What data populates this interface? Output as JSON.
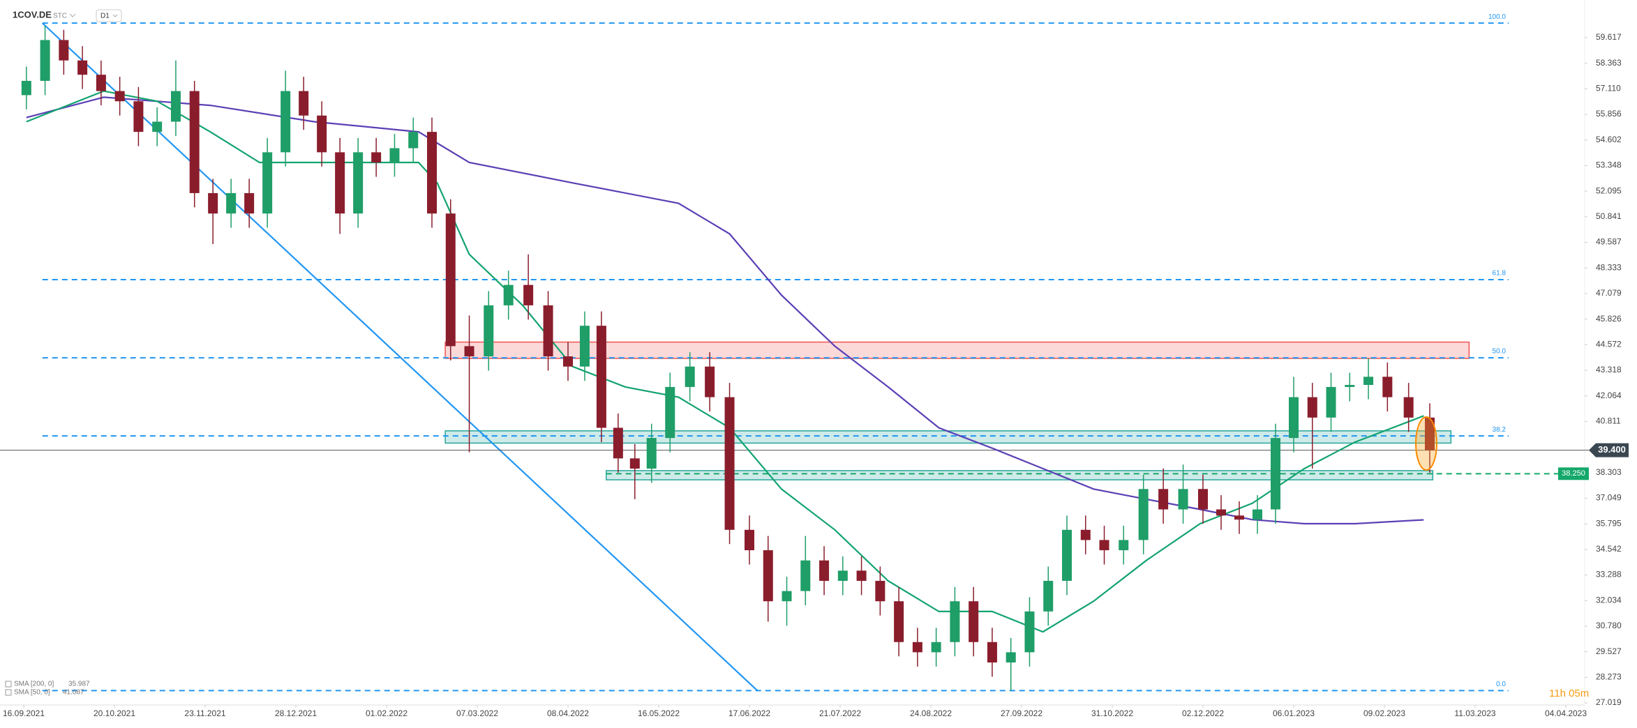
{
  "chart_data": {
    "type": "candlestick",
    "title": "1COV.DE",
    "market": "STC",
    "timeframe": "D1",
    "countdown": "11h 05m",
    "up_color": "#1f9e68",
    "down_color": "#8a1d2c",
    "ylim": [
      27.019,
      59.617
    ],
    "yticks": [
      59.617,
      58.363,
      {
        "value": 57.11,
        "label": "57.110"
      },
      55.856,
      54.602,
      53.348,
      52.095,
      50.841,
      49.587,
      48.333,
      47.079,
      45.826,
      44.572,
      43.318,
      42.064,
      40.811,
      38.303,
      37.049,
      35.795,
      34.542,
      33.288,
      32.034,
      {
        "value": 30.78,
        "label": "30.780"
      },
      29.527,
      28.273,
      27.019
    ],
    "xticks": [
      "16.09.2021",
      "20.10.2021",
      "23.11.2021",
      "28.12.2021",
      "01.02.2022",
      "07.03.2022",
      "08.04.2022",
      "16.05.2022",
      "17.06.2022",
      "21.07.2022",
      "24.08.2022",
      "27.09.2022",
      "31.10.2022",
      "02.12.2022",
      "06.01.2023",
      "09.02.2023",
      "11.03.2023",
      "04.04.2023"
    ],
    "x": [
      "17.09.2021",
      "24.09.2021",
      "01.10.2021",
      "08.10.2021",
      "15.10.2021",
      "22.10.2021",
      "29.10.2021",
      "05.11.2021",
      "12.11.2021",
      "19.11.2021",
      "26.11.2021",
      "03.12.2021",
      "10.12.2021",
      "17.12.2021",
      "24.12.2021",
      "31.12.2021",
      "07.01.2022",
      "14.01.2022",
      "21.01.2022",
      "28.01.2022",
      "04.02.2022",
      "11.02.2022",
      "18.02.2022",
      "25.02.2022",
      "04.03.2022",
      "11.03.2022",
      "18.03.2022",
      "25.03.2022",
      "01.04.2022",
      "08.04.2022",
      "15.04.2022",
      "22.04.2022",
      "29.04.2022",
      "06.05.2022",
      "13.05.2022",
      "20.05.2022",
      "27.05.2022",
      "03.06.2022",
      "10.06.2022",
      "17.06.2022",
      "24.06.2022",
      "01.07.2022",
      "08.07.2022",
      "15.07.2022",
      "22.07.2022",
      "29.07.2022",
      "05.08.2022",
      "12.08.2022",
      "19.08.2022",
      "26.08.2022",
      "02.09.2022",
      "09.09.2022",
      "16.09.2022",
      "23.09.2022",
      "30.09.2022",
      "07.10.2022",
      "14.10.2022",
      "21.10.2022",
      "28.10.2022",
      "04.11.2022",
      "11.11.2022",
      "18.11.2022",
      "25.11.2022",
      "02.12.2022",
      "09.12.2022",
      "16.12.2022",
      "23.12.2022",
      "30.12.2022",
      "06.01.2023",
      "13.01.2023",
      "20.01.2023",
      "27.01.2023",
      "03.02.2023",
      "10.02.2023",
      "17.02.2023",
      "24.02.2023"
    ],
    "open": [
      56.8,
      57.5,
      59.5,
      58.5,
      57.8,
      57,
      56.5,
      55,
      55.5,
      57,
      52,
      51,
      52,
      51,
      54,
      57,
      55.8,
      54,
      51,
      54,
      53.5,
      54.2,
      55,
      51,
      44.5,
      44,
      46.5,
      47.5,
      46.5,
      44,
      43.5,
      45.5,
      40.5,
      39,
      38.5,
      40,
      42.5,
      43.5,
      42,
      35.5,
      34.5,
      32,
      32.5,
      34,
      33,
      33.5,
      33,
      32,
      30,
      29.5,
      30,
      32,
      30,
      29,
      29.5,
      31.5,
      33,
      35.5,
      35,
      34.5,
      35,
      37.5,
      36.5,
      37.5,
      36.5,
      36.2,
      36,
      36.5,
      40,
      42,
      41,
      42.5,
      42.6,
      43,
      42,
      41
    ],
    "high": [
      58.2,
      60.2,
      60.0,
      59.2,
      58.5,
      57.7,
      57.2,
      56.2,
      58.5,
      57.5,
      52.7,
      52.7,
      52.7,
      54.7,
      58.0,
      57.7,
      56.5,
      54.7,
      54.7,
      54.7,
      54.9,
      55.7,
      55.7,
      51.7,
      46.0,
      47.2,
      48.2,
      49.0,
      47.2,
      44.7,
      46.2,
      46.2,
      41.2,
      39.7,
      40.7,
      43.2,
      44.2,
      44.2,
      42.7,
      36.2,
      35.2,
      33.2,
      35.2,
      34.7,
      34.2,
      34.2,
      33.7,
      32.7,
      30.7,
      30.7,
      32.7,
      32.7,
      30.7,
      30.2,
      32.2,
      33.7,
      36.2,
      36.2,
      35.7,
      35.7,
      38.2,
      38.5,
      38.7,
      38.2,
      37.2,
      36.9,
      37.2,
      40.7,
      43.0,
      42.7,
      43.2,
      43.2,
      43.9,
      43.7,
      42.7,
      41.7
    ],
    "low": [
      56.1,
      56.8,
      57.8,
      57.1,
      56.3,
      55.8,
      54.3,
      54.3,
      54.8,
      51.3,
      49.5,
      50.3,
      50.3,
      50.3,
      53.3,
      55.1,
      53.3,
      50.0,
      50.3,
      52.8,
      52.8,
      53.5,
      50.3,
      43.8,
      39.3,
      43.3,
      45.8,
      45.8,
      43.3,
      42.8,
      42.8,
      39.8,
      38.3,
      37.0,
      37.8,
      39.3,
      41.8,
      41.3,
      34.8,
      33.8,
      31.0,
      30.8,
      31.8,
      32.3,
      32.3,
      32.3,
      31.3,
      29.3,
      28.8,
      28.8,
      29.3,
      29.3,
      28.3,
      27.6,
      28.8,
      30.8,
      32.3,
      34.3,
      33.8,
      33.8,
      34.3,
      35.8,
      35.8,
      35.8,
      35.5,
      35.3,
      35.3,
      35.8,
      39.3,
      38.5,
      40.3,
      41.8,
      41.9,
      41.3,
      40.3,
      38.3
    ],
    "close": [
      57.5,
      59.5,
      58.5,
      57.8,
      57,
      56.5,
      55,
      55.5,
      57,
      52,
      51,
      52,
      51,
      54,
      57,
      55.8,
      54,
      51,
      54,
      53.5,
      54.2,
      55,
      51,
      44.5,
      44,
      46.5,
      47.5,
      46.5,
      44,
      43.5,
      45.5,
      40.5,
      39,
      38.5,
      40,
      42.5,
      43.5,
      42,
      35.5,
      34.5,
      32,
      32.5,
      34,
      33,
      33.5,
      33,
      32,
      30,
      29.5,
      30,
      32,
      30,
      29,
      29.5,
      31.5,
      33,
      35.5,
      35,
      34.5,
      35,
      37.5,
      36.5,
      37.5,
      36.5,
      36.2,
      36,
      36.5,
      40,
      42,
      41,
      42.5,
      42.6,
      43,
      42,
      41,
      39.4
    ],
    "series": [
      {
        "name": "SMA [200, 0]",
        "color": "#5b3fb5",
        "x": [
          "17.09.2021",
          "16.10.2021",
          "25.11.2021",
          "04.01.2022",
          "13.02.2022",
          "04.03.2022",
          "10.04.2022",
          "23.05.2022",
          "10.06.2022",
          "29.06.2022",
          "19.07.2022",
          "08.08.2022",
          "27.08.2022",
          "16.09.2022",
          "05.10.2022",
          "24.10.2022",
          "12.11.2022",
          "01.12.2022",
          "21.12.2022",
          "10.01.2023",
          "29.01.2023",
          "22.02.2023"
        ],
        "values": [
          55.7,
          56.7,
          56.3,
          55.5,
          55,
          53.5,
          52.5,
          51.5,
          50,
          47,
          44.5,
          42.5,
          40.5,
          39.5,
          38.5,
          37.5,
          37,
          36.5,
          36,
          35.8,
          35.8,
          35.987
        ]
      },
      {
        "name": "SMA [50, 0]",
        "color": "#12a36f",
        "x": [
          "17.09.2021",
          "16.10.2021",
          "05.11.2021",
          "25.11.2021",
          "14.12.2021",
          "04.01.2022",
          "13.02.2022",
          "20.02.2022",
          "04.03.2022",
          "23.03.2022",
          "10.04.2022",
          "02.05.2022",
          "23.05.2022",
          "10.06.2022",
          "29.06.2022",
          "19.07.2022",
          "08.08.2022",
          "27.08.2022",
          "16.09.2022",
          "05.10.2022",
          "24.10.2022",
          "12.11.2022",
          "01.12.2022",
          "21.12.2022",
          "10.01.2023",
          "29.01.2023",
          "17.02.2023",
          "22.02.2023"
        ],
        "values": [
          55.5,
          57,
          56.5,
          55,
          53.5,
          53.5,
          53.5,
          52.5,
          49,
          46.5,
          43.5,
          42.5,
          42,
          40.5,
          37.5,
          35.5,
          33,
          31.5,
          31.5,
          30.5,
          32,
          34,
          35.8,
          36.8,
          38.5,
          39.8,
          40.8,
          41.087
        ]
      }
    ],
    "fib_color": "#2196f3",
    "fib_start": "23.09.2021",
    "fib_levels": [
      {
        "label": "100.0",
        "price": 60.33
      },
      {
        "label": "61.8",
        "price": 47.76
      },
      {
        "label": "50.0",
        "price": 43.93
      },
      {
        "label": "38.2",
        "price": 40.1
      },
      {
        "label": "0.0",
        "price": 27.62
      }
    ],
    "trendline": {
      "x": [
        "23.09.2021",
        "20.06.2022"
      ],
      "price": [
        60.33,
        27.62
      ],
      "color": "#2196f3"
    },
    "zones": [
      {
        "x": [
          "23.02.2022",
          "09.03.2023"
        ],
        "price": [
          43.9,
          44.7
        ],
        "color": "#ef5350"
      },
      {
        "x": [
          "23.02.2022",
          "03.03.2023"
        ],
        "price": [
          39.75,
          40.35
        ],
        "color": "#26a69a"
      },
      {
        "x": [
          "24.04.2022",
          "25.02.2023"
        ],
        "price": [
          37.95,
          38.4
        ],
        "color": "#26a69a"
      }
    ],
    "support_line": {
      "x": "24.04.2022",
      "price": {
        "value": 38.25,
        "label": "38.250"
      },
      "color": "#14a86a"
    },
    "last_price": {
      "value": 39.4,
      "label": "39.400"
    }
  }
}
